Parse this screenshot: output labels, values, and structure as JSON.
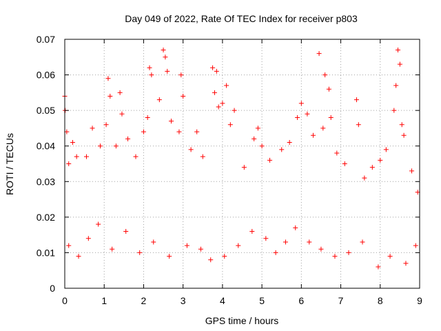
{
  "chart_data": {
    "type": "scatter",
    "title": "Day 049 of 2022, Rate Of TEC Index for receiver p803",
    "xlabel": "GPS time / hours",
    "ylabel": "ROTI / TECUs",
    "xlim": [
      0,
      9
    ],
    "ylim": [
      0,
      0.07
    ],
    "xticks": [
      "0",
      "1",
      "2",
      "3",
      "4",
      "5",
      "6",
      "7",
      "8",
      "9"
    ],
    "yticks": [
      "0",
      "0.01",
      "0.02",
      "0.03",
      "0.04",
      "0.05",
      "0.06",
      "0.07"
    ],
    "grid": true,
    "marker": "plus",
    "series": [
      {
        "color": "#ff0000",
        "points": [
          [
            0.0,
            0.054
          ],
          [
            0.01,
            0.05
          ],
          [
            0.05,
            0.044
          ],
          [
            0.1,
            0.035
          ],
          [
            0.2,
            0.041
          ],
          [
            0.3,
            0.037
          ],
          [
            0.55,
            0.037
          ],
          [
            0.7,
            0.045
          ],
          [
            0.9,
            0.04
          ],
          [
            1.05,
            0.046
          ],
          [
            1.1,
            0.059
          ],
          [
            1.15,
            0.054
          ],
          [
            1.3,
            0.04
          ],
          [
            1.4,
            0.055
          ],
          [
            1.45,
            0.049
          ],
          [
            1.6,
            0.042
          ],
          [
            1.8,
            0.037
          ],
          [
            2.0,
            0.044
          ],
          [
            2.1,
            0.048
          ],
          [
            2.15,
            0.062
          ],
          [
            2.2,
            0.06
          ],
          [
            2.4,
            0.053
          ],
          [
            2.5,
            0.067
          ],
          [
            2.55,
            0.065
          ],
          [
            2.6,
            0.061
          ],
          [
            2.7,
            0.047
          ],
          [
            2.9,
            0.044
          ],
          [
            2.95,
            0.06
          ],
          [
            3.0,
            0.054
          ],
          [
            3.2,
            0.039
          ],
          [
            3.35,
            0.044
          ],
          [
            3.5,
            0.037
          ],
          [
            3.75,
            0.062
          ],
          [
            3.8,
            0.055
          ],
          [
            3.85,
            0.061
          ],
          [
            3.9,
            0.051
          ],
          [
            4.0,
            0.052
          ],
          [
            4.1,
            0.057
          ],
          [
            4.2,
            0.046
          ],
          [
            4.3,
            0.05
          ],
          [
            4.55,
            0.034
          ],
          [
            4.8,
            0.042
          ],
          [
            4.9,
            0.045
          ],
          [
            5.0,
            0.04
          ],
          [
            5.2,
            0.036
          ],
          [
            5.5,
            0.039
          ],
          [
            5.7,
            0.041
          ],
          [
            5.9,
            0.048
          ],
          [
            6.0,
            0.052
          ],
          [
            6.15,
            0.049
          ],
          [
            6.3,
            0.043
          ],
          [
            6.45,
            0.066
          ],
          [
            6.55,
            0.045
          ],
          [
            6.6,
            0.06
          ],
          [
            6.7,
            0.056
          ],
          [
            6.75,
            0.048
          ],
          [
            6.9,
            0.038
          ],
          [
            7.1,
            0.035
          ],
          [
            7.4,
            0.053
          ],
          [
            7.45,
            0.046
          ],
          [
            7.6,
            0.031
          ],
          [
            7.8,
            0.034
          ],
          [
            8.0,
            0.036
          ],
          [
            8.15,
            0.039
          ],
          [
            8.35,
            0.05
          ],
          [
            8.4,
            0.057
          ],
          [
            8.45,
            0.067
          ],
          [
            8.5,
            0.063
          ],
          [
            8.55,
            0.046
          ],
          [
            8.6,
            0.043
          ],
          [
            8.8,
            0.033
          ],
          [
            8.95,
            0.027
          ],
          [
            0.1,
            0.012
          ],
          [
            0.35,
            0.009
          ],
          [
            0.6,
            0.014
          ],
          [
            0.85,
            0.018
          ],
          [
            1.2,
            0.011
          ],
          [
            1.55,
            0.016
          ],
          [
            1.9,
            0.01
          ],
          [
            2.25,
            0.013
          ],
          [
            2.65,
            0.009
          ],
          [
            3.1,
            0.012
          ],
          [
            3.45,
            0.011
          ],
          [
            3.7,
            0.008
          ],
          [
            4.05,
            0.009
          ],
          [
            4.4,
            0.012
          ],
          [
            4.75,
            0.016
          ],
          [
            5.1,
            0.014
          ],
          [
            5.35,
            0.01
          ],
          [
            5.6,
            0.013
          ],
          [
            5.85,
            0.017
          ],
          [
            6.2,
            0.013
          ],
          [
            6.5,
            0.011
          ],
          [
            6.85,
            0.009
          ],
          [
            7.2,
            0.01
          ],
          [
            7.55,
            0.013
          ],
          [
            7.95,
            0.006
          ],
          [
            8.25,
            0.009
          ],
          [
            8.65,
            0.007
          ],
          [
            8.9,
            0.012
          ]
        ]
      }
    ]
  }
}
